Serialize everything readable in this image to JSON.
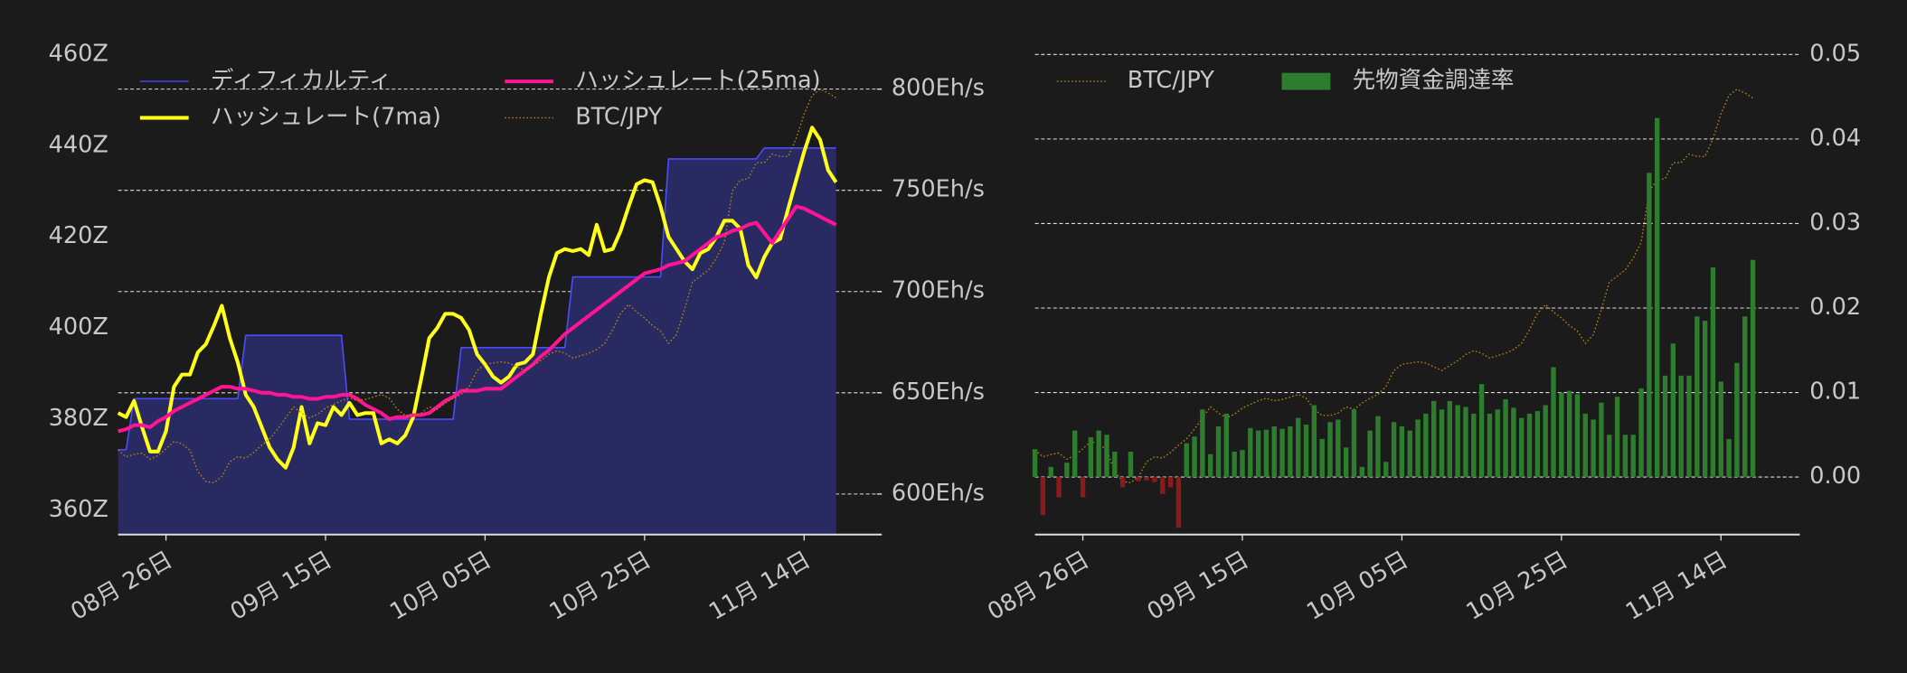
{
  "chart_data": [
    {
      "type": "line",
      "categories": [
        null,
        null,
        null,
        null,
        null,
        null,
        "08月 26日",
        null,
        null,
        null,
        null,
        null,
        null,
        null,
        null,
        null,
        null,
        null,
        null,
        null,
        null,
        null,
        null,
        null,
        null,
        null,
        "09月 15日",
        null,
        null,
        null,
        null,
        null,
        null,
        null,
        null,
        null,
        null,
        null,
        null,
        null,
        null,
        null,
        null,
        null,
        null,
        null,
        "10月 05日",
        null,
        null,
        null,
        null,
        null,
        null,
        null,
        null,
        null,
        null,
        null,
        null,
        null,
        null,
        null,
        null,
        null,
        null,
        null,
        "10月 25日",
        null,
        null,
        null,
        null,
        null,
        null,
        null,
        null,
        null,
        null,
        null,
        null,
        null,
        null,
        null,
        null,
        null,
        null,
        null,
        "11月 14日",
        null,
        null,
        null,
        null
      ],
      "ylim": [
        354.7,
        461.3
      ],
      "yticks": [
        {
          "value": 360,
          "label": "360Z"
        },
        {
          "value": 380,
          "label": "380Z"
        },
        {
          "value": 400,
          "label": "400Z"
        },
        {
          "value": 420,
          "label": "420Z"
        },
        {
          "value": 440,
          "label": "440Z"
        },
        {
          "value": 460,
          "label": "460Z"
        }
      ],
      "y2lim": [
        580,
        820
      ],
      "y2ticks": [
        {
          "value": 600,
          "label": "600Eh/s"
        },
        {
          "value": 650,
          "label": "650Eh/s"
        },
        {
          "value": 700,
          "label": "700Eh/s"
        },
        {
          "value": 750,
          "label": "750Eh/s"
        },
        {
          "value": 800,
          "label": "800Eh/s"
        }
      ],
      "y3lim": [
        7280000,
        15160000
      ],
      "grid": "y2",
      "legend": {
        "loc": "upper left",
        "ncol": 2
      },
      "series": [
        {
          "name": "ディフィカルティ",
          "style": "area",
          "axis": "y",
          "color": "#4b4bff",
          "fill": "#2a2a62",
          "values": [
            373.3,
            373.3,
            384.5,
            384.5,
            384.5,
            384.5,
            384.5,
            384.5,
            384.5,
            384.5,
            384.5,
            384.5,
            384.5,
            384.5,
            384.5,
            384.5,
            398.4,
            398.4,
            398.4,
            398.4,
            398.4,
            398.4,
            398.4,
            398.4,
            398.4,
            398.4,
            398.4,
            398.4,
            398.4,
            380,
            380,
            380,
            380,
            380,
            380,
            380,
            380,
            380,
            380,
            380,
            380,
            380,
            380,
            395.7,
            395.7,
            395.7,
            395.7,
            395.7,
            395.7,
            395.7,
            395.7,
            395.7,
            395.7,
            395.7,
            395.7,
            395.7,
            395.7,
            411.2,
            411.2,
            411.2,
            411.2,
            411.2,
            411.2,
            411.2,
            411.2,
            411.2,
            411.2,
            411.2,
            411.2,
            437.1,
            437.1,
            437.1,
            437.1,
            437.1,
            437.1,
            437.1,
            437.1,
            437.1,
            437.1,
            437.1,
            437.1,
            439.5,
            439.5,
            439.5,
            439.5,
            439.5,
            439.5,
            439.5,
            439.5,
            439.5,
            439.5
          ]
        },
        {
          "name": "ハッシュレート(7ma)",
          "style": "line",
          "axis": "y2",
          "color": "#ffff1a",
          "values": [
            640,
            638,
            646,
            633,
            621,
            621,
            631,
            653,
            659,
            659,
            670,
            674,
            683,
            693,
            677,
            665,
            649,
            643,
            633,
            623,
            617,
            613,
            623,
            643,
            625,
            635,
            634,
            643,
            639,
            645,
            639,
            640,
            640,
            625,
            627,
            625,
            629,
            638,
            657,
            677,
            682,
            689,
            689,
            687,
            681,
            669,
            664,
            658,
            655,
            658,
            664,
            665,
            669,
            689,
            707,
            719,
            721,
            720,
            721,
            718,
            733,
            720,
            721,
            730,
            742,
            753,
            755,
            754,
            742,
            727,
            721,
            715,
            711,
            719,
            721,
            727,
            735,
            735,
            731,
            713,
            707,
            717,
            724,
            726,
            741,
            755,
            769,
            781,
            775,
            760,
            754
          ]
        },
        {
          "name": "ハッシュレート(25ma)",
          "style": "line",
          "axis": "y2",
          "color": "#ff1493",
          "values": [
            631,
            632,
            634,
            634,
            633,
            636,
            638,
            641,
            643,
            645,
            647,
            649,
            651,
            653,
            653,
            652,
            652,
            651,
            650,
            650,
            649,
            649,
            648,
            648,
            647,
            647,
            648,
            648,
            649,
            649,
            647,
            644,
            642,
            640,
            637,
            638,
            638,
            639,
            639,
            640,
            643,
            646,
            648,
            651,
            651,
            651,
            652,
            652,
            652,
            655,
            658,
            661,
            664,
            668,
            671,
            675,
            679,
            682,
            685,
            688,
            691,
            694,
            697,
            700,
            703,
            706,
            709,
            710,
            711,
            713,
            714,
            715,
            718,
            721,
            724,
            727,
            728,
            730,
            731,
            733,
            734,
            729,
            724,
            730,
            736,
            742,
            741,
            739,
            737,
            735,
            733
          ]
        },
        {
          "name": "BTC/JPY",
          "style": "dotted",
          "axis": "y3",
          "color": "#b8860b",
          "values": [
            8650000,
            8540000,
            8580000,
            8600000,
            8500000,
            8560000,
            8670000,
            8790000,
            8750000,
            8650000,
            8300000,
            8140000,
            8120000,
            8220000,
            8460000,
            8540000,
            8520000,
            8610000,
            8730000,
            8830000,
            8990000,
            9170000,
            9350000,
            9250000,
            9170000,
            9230000,
            9330000,
            9390000,
            9450000,
            9490000,
            9450000,
            9470000,
            9510000,
            9550000,
            9490000,
            9310000,
            9210000,
            9210000,
            9250000,
            9350000,
            9310000,
            9410000,
            9490000,
            9550000,
            9680000,
            9940000,
            10040000,
            10060000,
            10080000,
            10060000,
            10000000,
            9940000,
            10020000,
            10100000,
            10200000,
            10260000,
            10220000,
            10140000,
            10180000,
            10220000,
            10280000,
            10380000,
            10600000,
            10870000,
            11010000,
            10890000,
            10790000,
            10670000,
            10580000,
            10380000,
            10520000,
            10930000,
            11370000,
            11470000,
            11570000,
            11760000,
            12020000,
            12850000,
            13030000,
            13050000,
            13310000,
            13310000,
            13450000,
            13410000,
            13410000,
            13700000,
            14100000,
            14400000,
            14500000,
            14440000,
            14360000
          ]
        }
      ]
    },
    {
      "type": "bar",
      "categories": [
        null,
        null,
        null,
        null,
        null,
        null,
        "08月 26日",
        null,
        null,
        null,
        null,
        null,
        null,
        null,
        null,
        null,
        null,
        null,
        null,
        null,
        null,
        null,
        null,
        null,
        null,
        null,
        "09月 15日",
        null,
        null,
        null,
        null,
        null,
        null,
        null,
        null,
        null,
        null,
        null,
        null,
        null,
        null,
        null,
        null,
        null,
        null,
        null,
        "10月 05日",
        null,
        null,
        null,
        null,
        null,
        null,
        null,
        null,
        null,
        null,
        null,
        null,
        null,
        null,
        null,
        null,
        null,
        null,
        null,
        "10月 25日",
        null,
        null,
        null,
        null,
        null,
        null,
        null,
        null,
        null,
        null,
        null,
        null,
        null,
        null,
        null,
        null,
        null,
        null,
        null,
        "11月 14日",
        null,
        null,
        null,
        null
      ],
      "ylim": [
        -0.0068,
        0.0507
      ],
      "yticks": [
        {
          "value": 0,
          "label": "0.00"
        },
        0.01,
        0.02,
        0.03,
        0.04,
        0.05
      ],
      "yaxis_side": "right",
      "y3lim": [
        7280000,
        15160000
      ],
      "grid": "y",
      "legend": {
        "loc": "upper left",
        "ncol": 2
      },
      "series": [
        {
          "name": "BTC/JPY",
          "style": "dotted",
          "axis": "y3",
          "color": "#b8860b",
          "values": [
            8650000,
            8540000,
            8580000,
            8600000,
            8500000,
            8560000,
            8670000,
            8790000,
            8750000,
            8650000,
            8300000,
            8140000,
            8120000,
            8220000,
            8460000,
            8540000,
            8520000,
            8610000,
            8730000,
            8830000,
            8990000,
            9170000,
            9350000,
            9250000,
            9170000,
            9230000,
            9330000,
            9390000,
            9450000,
            9490000,
            9450000,
            9470000,
            9510000,
            9550000,
            9490000,
            9310000,
            9210000,
            9210000,
            9250000,
            9350000,
            9310000,
            9410000,
            9490000,
            9550000,
            9680000,
            9940000,
            10040000,
            10060000,
            10080000,
            10060000,
            10000000,
            9940000,
            10020000,
            10100000,
            10200000,
            10260000,
            10220000,
            10140000,
            10180000,
            10220000,
            10280000,
            10380000,
            10600000,
            10870000,
            11010000,
            10890000,
            10790000,
            10670000,
            10580000,
            10380000,
            10520000,
            10930000,
            11370000,
            11470000,
            11570000,
            11760000,
            12020000,
            12850000,
            13030000,
            13050000,
            13310000,
            13310000,
            13450000,
            13410000,
            13410000,
            13700000,
            14100000,
            14400000,
            14500000,
            14440000,
            14360000
          ]
        },
        {
          "name": "先物資金調達率",
          "style": "bar",
          "axis": "y",
          "color": "#2e7d2e",
          "color_negative": "#8b1a1a",
          "values": [
            0.0033,
            -0.0045,
            0.0012,
            -0.0024,
            0.0017,
            0.0055,
            -0.0024,
            0.0047,
            0.0055,
            0.005,
            0.003,
            -0.0012,
            0.003,
            -0.0005,
            -0.0004,
            -0.0006,
            -0.002,
            -0.0012,
            -0.006,
            0.004,
            0.0048,
            0.008,
            0.0027,
            0.006,
            0.0075,
            0.003,
            0.0032,
            0.0058,
            0.0055,
            0.0056,
            0.006,
            0.0057,
            0.006,
            0.007,
            0.0062,
            0.0085,
            0.0045,
            0.0065,
            0.0068,
            0.0035,
            0.008,
            0.0012,
            0.0055,
            0.0072,
            0.0018,
            0.0065,
            0.006,
            0.0055,
            0.0068,
            0.0075,
            0.009,
            0.008,
            0.009,
            0.0085,
            0.0083,
            0.0075,
            0.011,
            0.0075,
            0.008,
            0.0092,
            0.0082,
            0.007,
            0.0075,
            0.0078,
            0.0085,
            0.013,
            0.01,
            0.0102,
            0.0098,
            0.0075,
            0.0068,
            0.0088,
            0.005,
            0.0095,
            0.005,
            0.005,
            0.0105,
            0.036,
            0.0425,
            0.012,
            0.0158,
            0.012,
            0.012,
            0.019,
            0.0185,
            0.0248,
            0.0113,
            0.0045,
            0.0135,
            0.019,
            0.0257
          ]
        }
      ]
    }
  ]
}
